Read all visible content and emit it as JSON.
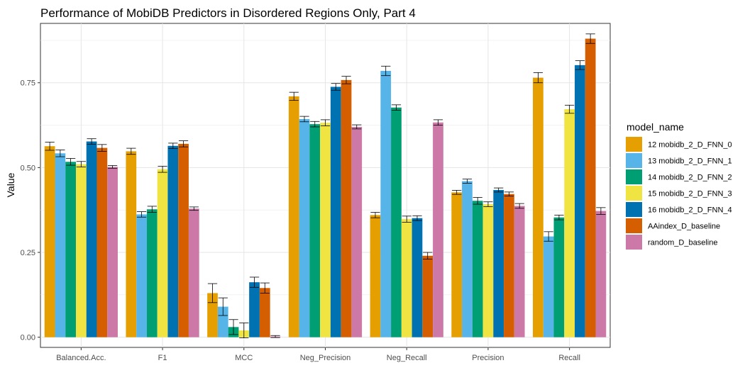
{
  "chart_data": {
    "type": "bar",
    "title": "Performance of MobiDB Predictors in Disordered Regions Only, Part 4",
    "xlabel": "",
    "ylabel": "Value",
    "ylim": [
      -0.03,
      0.925
    ],
    "yticks": [
      "0.00",
      "0.25",
      "0.50",
      "0.75"
    ],
    "grid": true,
    "legend_title": "model_name",
    "legend_position": "right",
    "categories": [
      "Balanced.Acc.",
      "F1",
      "MCC",
      "Neg_Precision",
      "Neg_Recall",
      "Precision",
      "Recall"
    ],
    "series": [
      {
        "name": "12 mobidb_2_D_FNN_0",
        "color": "#E69F00",
        "values": [
          0.563,
          0.548,
          0.13,
          0.71,
          0.36,
          0.427,
          0.765
        ],
        "errors": [
          0.012,
          0.009,
          0.028,
          0.012,
          0.008,
          0.006,
          0.015
        ]
      },
      {
        "name": "13 mobidb_2_D_FNN_1",
        "color": "#56B4E9",
        "values": [
          0.542,
          0.362,
          0.09,
          0.643,
          0.785,
          0.46,
          0.297
        ],
        "errors": [
          0.01,
          0.008,
          0.026,
          0.008,
          0.014,
          0.006,
          0.014
        ]
      },
      {
        "name": "14 mobidb_2_D_FNN_2",
        "color": "#009E73",
        "values": [
          0.517,
          0.377,
          0.03,
          0.628,
          0.677,
          0.402,
          0.353
        ],
        "errors": [
          0.01,
          0.009,
          0.022,
          0.008,
          0.008,
          0.01,
          0.007
        ]
      },
      {
        "name": "15 mobidb_2_D_FNN_3",
        "color": "#F0E442",
        "values": [
          0.51,
          0.495,
          0.02,
          0.632,
          0.348,
          0.392,
          0.672
        ],
        "errors": [
          0.008,
          0.009,
          0.022,
          0.009,
          0.009,
          0.007,
          0.012
        ]
      },
      {
        "name": "16 mobidb_2_D_FNN_4",
        "color": "#0072B2",
        "values": [
          0.577,
          0.564,
          0.162,
          0.738,
          0.351,
          0.434,
          0.802
        ],
        "errors": [
          0.008,
          0.008,
          0.015,
          0.01,
          0.007,
          0.006,
          0.013
        ]
      },
      {
        "name": "AAindex_D_baseline",
        "color": "#D55E00",
        "values": [
          0.558,
          0.57,
          0.145,
          0.758,
          0.24,
          0.422,
          0.88
        ],
        "errors": [
          0.01,
          0.009,
          0.015,
          0.011,
          0.01,
          0.006,
          0.014
        ]
      },
      {
        "name": "random_D_baseline",
        "color": "#CC79A7",
        "values": [
          0.502,
          0.379,
          0.002,
          0.62,
          0.633,
          0.387,
          0.372
        ],
        "errors": [
          0.004,
          0.005,
          0.003,
          0.006,
          0.008,
          0.007,
          0.01
        ]
      }
    ]
  }
}
